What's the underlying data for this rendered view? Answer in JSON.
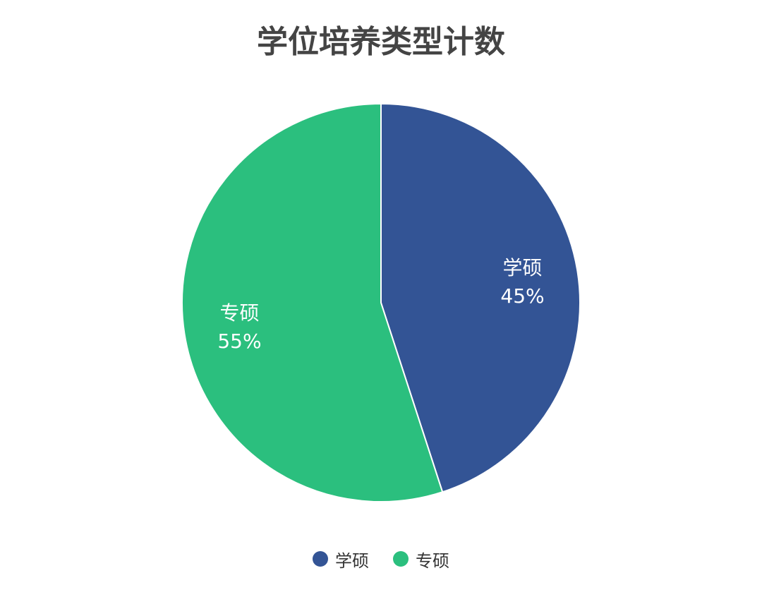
{
  "chart_data": {
    "type": "pie",
    "title": "学位培养类型计数",
    "slices": [
      {
        "name": "学硕",
        "value": 45,
        "label": "45%",
        "color": "#335495"
      },
      {
        "name": "专硕",
        "value": 55,
        "label": "55%",
        "color": "#2bbf7e"
      }
    ],
    "legend_position": "bottom",
    "start_angle_deg": -90,
    "direction": "clockwise"
  }
}
